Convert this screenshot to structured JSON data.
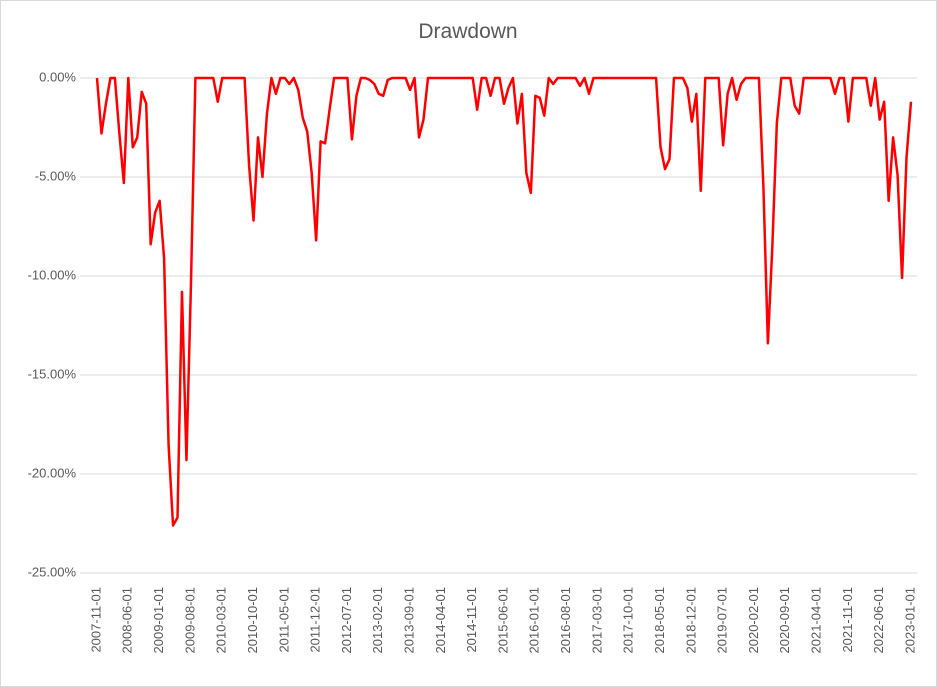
{
  "chart_data": {
    "type": "line",
    "title": "Drawdown",
    "categories": [
      "2007-11-01",
      null,
      null,
      null,
      null,
      null,
      null,
      "2008-06-01",
      null,
      null,
      null,
      null,
      null,
      null,
      "2009-01-01",
      null,
      null,
      null,
      null,
      null,
      null,
      "2009-08-01",
      null,
      null,
      null,
      null,
      null,
      null,
      "2010-03-01",
      null,
      null,
      null,
      null,
      null,
      null,
      "2010-10-01",
      null,
      null,
      null,
      null,
      null,
      null,
      "2011-05-01",
      null,
      null,
      null,
      null,
      null,
      null,
      "2011-12-01",
      null,
      null,
      null,
      null,
      null,
      null,
      "2012-07-01",
      null,
      null,
      null,
      null,
      null,
      null,
      "2013-02-01",
      null,
      null,
      null,
      null,
      null,
      null,
      "2013-09-01",
      null,
      null,
      null,
      null,
      null,
      null,
      "2014-04-01",
      null,
      null,
      null,
      null,
      null,
      null,
      "2014-11-01",
      null,
      null,
      null,
      null,
      null,
      null,
      "2015-06-01",
      null,
      null,
      null,
      null,
      null,
      null,
      "2016-01-01",
      null,
      null,
      null,
      null,
      null,
      null,
      "2016-08-01",
      null,
      null,
      null,
      null,
      null,
      null,
      "2017-03-01",
      null,
      null,
      null,
      null,
      null,
      null,
      "2017-10-01",
      null,
      null,
      null,
      null,
      null,
      null,
      "2018-05-01",
      null,
      null,
      null,
      null,
      null,
      null,
      "2018-12-01",
      null,
      null,
      null,
      null,
      null,
      null,
      "2019-07-01",
      null,
      null,
      null,
      null,
      null,
      null,
      "2020-02-01",
      null,
      null,
      null,
      null,
      null,
      null,
      "2020-09-01",
      null,
      null,
      null,
      null,
      null,
      null,
      "2021-04-01",
      null,
      null,
      null,
      null,
      null,
      null,
      "2021-11-01",
      null,
      null,
      null,
      null,
      null,
      null,
      "2022-06-01",
      null,
      null,
      null,
      null,
      null,
      null,
      "2023-01-01"
    ],
    "series": [
      {
        "name": "Drawdown",
        "color": "#ff0000",
        "values": [
          0,
          -2.8,
          -1.3,
          0,
          0,
          -2.8,
          -5.3,
          0,
          -3.5,
          -3.0,
          -0.7,
          -1.3,
          -8.4,
          -6.8,
          -6.2,
          -9.1,
          -18.5,
          -22.6,
          -22.2,
          -10.8,
          -19.3,
          -10.5,
          0,
          0,
          0,
          0,
          0,
          -1.2,
          0,
          0,
          0,
          0,
          0,
          0,
          -4.4,
          -7.2,
          -3.0,
          -5.0,
          -1.8,
          0,
          -0.8,
          0,
          0,
          -0.3,
          0,
          -0.6,
          -2.0,
          -2.7,
          -4.8,
          -8.2,
          -3.2,
          -3.3,
          -1.6,
          0,
          0,
          0,
          0,
          -3.1,
          -0.9,
          0,
          0,
          -0.1,
          -0.3,
          -0.8,
          -0.9,
          -0.1,
          0,
          0,
          0,
          0,
          -0.6,
          0,
          -3.0,
          -2.1,
          0,
          0,
          0,
          0,
          0,
          0,
          0,
          0,
          0,
          0,
          0,
          -1.6,
          0,
          0,
          -0.9,
          0,
          0,
          -1.3,
          -0.5,
          0,
          -2.3,
          -0.8,
          -4.8,
          -5.8,
          -0.9,
          -1.0,
          -1.9,
          0,
          -0.3,
          0,
          0,
          0,
          0,
          0,
          -0.4,
          0,
          -0.8,
          0,
          0,
          0,
          0,
          0,
          0,
          0,
          0,
          0,
          0,
          0,
          0,
          0,
          0,
          0,
          -3.5,
          -4.6,
          -4.1,
          0,
          0,
          0,
          -0.5,
          -2.2,
          -0.8,
          -5.7,
          0,
          0,
          0,
          0,
          -3.4,
          -0.8,
          0,
          -1.1,
          -0.3,
          0,
          0,
          0,
          0,
          -5.5,
          -13.4,
          -8.5,
          -2.3,
          0,
          0,
          0,
          -1.4,
          -1.8,
          0,
          0,
          0,
          0,
          0,
          0,
          0,
          -0.8,
          0,
          0,
          -2.2,
          0,
          0,
          0,
          0,
          -1.4,
          0,
          -2.1,
          -1.2,
          -6.2,
          -3.0,
          -4.9,
          -10.1,
          -4.0,
          -1.2
        ]
      }
    ],
    "ylim": [
      -25,
      0
    ],
    "yticks": [
      {
        "value": 0,
        "label": "0.00%"
      },
      {
        "value": -5,
        "label": "-5.00%"
      },
      {
        "value": -10,
        "label": "-10.00%"
      },
      {
        "value": -15,
        "label": "-15.00%"
      },
      {
        "value": -20,
        "label": "-20.00%"
      },
      {
        "value": -25,
        "label": "-25.00%"
      }
    ],
    "grid": true
  }
}
